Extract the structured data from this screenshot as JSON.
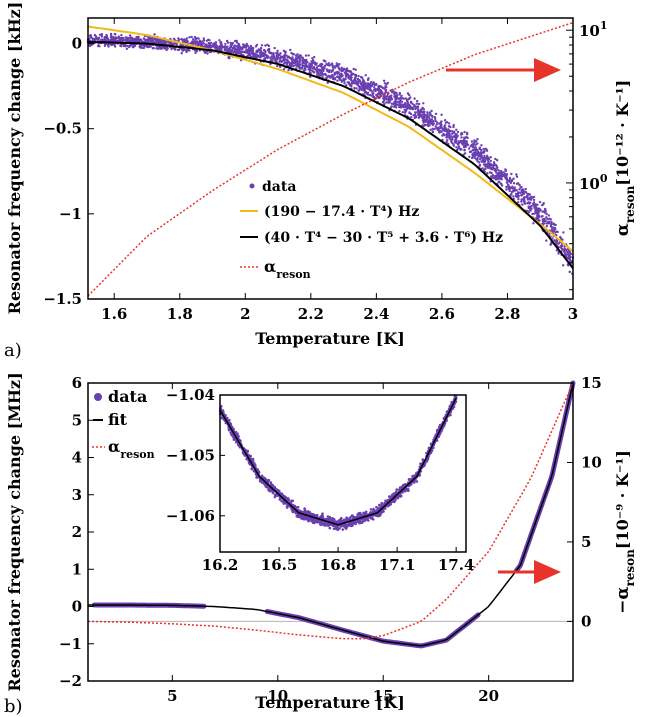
{
  "chart_data": [
    {
      "panel": "a)",
      "type": "scatter",
      "xlabel": "Temperature [K]",
      "ylabel": "Resonator frequency change [kHz]",
      "y2label_main": "α",
      "y2label_sub": "reson",
      "y2label_unit": "[10⁻¹² · K⁻¹]",
      "xlim": [
        1.52,
        3.0
      ],
      "ylim": [
        -1.5,
        0.15
      ],
      "y2lim_log10": [
        -0.76,
        1.08
      ],
      "xticks": [
        "1.6",
        "1.8",
        "2",
        "2.2",
        "2.4",
        "2.6",
        "2.8",
        "3"
      ],
      "yticks": [
        "0",
        "−0.5",
        "−1",
        "−1.5"
      ],
      "y2ticks": [
        "10",
        "10"
      ],
      "y2ticks_exp": [
        "1",
        "0"
      ],
      "legend": [
        {
          "label": "data",
          "color": "#6a3fb0"
        },
        {
          "label": "(190 − 17.4 · T⁴) Hz",
          "color": "#f2b81c"
        },
        {
          "label": "(40 · T⁴ − 30 · T⁵ + 3.6 · T⁶) Hz",
          "color": "#000000"
        },
        {
          "label_main": "α",
          "label_sub": "reson",
          "color": "#e8332a"
        }
      ],
      "series": [
        {
          "type": "scatter-band",
          "x": [
            1.52,
            1.7,
            1.9,
            2.1,
            2.3,
            2.5,
            2.7,
            2.9,
            3.0
          ],
          "y": [
            0.02,
            0.01,
            -0.02,
            -0.08,
            -0.19,
            -0.37,
            -0.63,
            -1.0,
            -1.28
          ]
        },
        {
          "type": "line",
          "x": [
            1.52,
            1.7,
            1.9,
            2.1,
            2.3,
            2.5,
            2.7,
            2.9,
            3.0
          ],
          "y": [
            0.1,
            0.05,
            -0.04,
            -0.15,
            -0.29,
            -0.49,
            -0.76,
            -1.06,
            -1.22
          ]
        },
        {
          "type": "line",
          "x": [
            1.52,
            1.7,
            1.9,
            2.1,
            2.3,
            2.5,
            2.7,
            2.9,
            3.0
          ],
          "y": [
            0.01,
            0.0,
            -0.04,
            -0.12,
            -0.25,
            -0.44,
            -0.71,
            -1.07,
            -1.32
          ]
        },
        {
          "type": "dotted-y2",
          "x": [
            1.52,
            1.7,
            1.9,
            2.1,
            2.3,
            2.5,
            2.7,
            2.9,
            3.0
          ],
          "y_log10": [
            -0.74,
            -0.35,
            -0.05,
            0.22,
            0.45,
            0.66,
            0.84,
            0.98,
            1.05
          ]
        }
      ]
    },
    {
      "panel": "b)",
      "type": "scatter",
      "xlabel": "Temperature [K]",
      "ylabel": "Resonator frequency change [MHz]",
      "y2label_main": "−α",
      "y2label_sub": "reson",
      "y2label_unit": "[10⁻⁹ · K⁻¹]",
      "xlim": [
        1.0,
        24.0
      ],
      "ylim": [
        -2.0,
        6.0
      ],
      "y2lim": [
        -3.75,
        15.0
      ],
      "xticks": [
        "5",
        "10",
        "15",
        "20"
      ],
      "yticks": [
        "6",
        "5",
        "4",
        "3",
        "2",
        "1",
        "0",
        "−1",
        "−2"
      ],
      "y2ticks": [
        "15",
        "10",
        "5",
        "0"
      ],
      "legend": [
        {
          "label": "data",
          "color": "#6a3fb0"
        },
        {
          "label": "fit",
          "color": "#000000"
        },
        {
          "label_main": "α",
          "label_sub": "reson",
          "color": "#e8332a"
        }
      ],
      "series": [
        {
          "type": "line",
          "x": [
            1,
            3,
            5,
            7,
            9,
            11,
            13,
            15,
            16.8,
            18,
            20,
            21.5,
            23,
            24
          ],
          "y": [
            0.04,
            0.04,
            0.03,
            0.0,
            -0.08,
            -0.3,
            -0.62,
            -0.93,
            -1.06,
            -0.9,
            0.0,
            1.1,
            3.5,
            6.0
          ]
        },
        {
          "type": "dotted-y2",
          "x": [
            1,
            3,
            5,
            7,
            9,
            11,
            13,
            14,
            15,
            16.8,
            18,
            20,
            22,
            24
          ],
          "y": [
            0.0,
            -0.05,
            -0.15,
            -0.3,
            -0.55,
            -0.85,
            -1.08,
            -1.1,
            -0.9,
            0.0,
            1.4,
            4.4,
            9.0,
            15.0
          ]
        }
      ],
      "inset": {
        "xlim": [
          16.2,
          17.45
        ],
        "ylim": [
          -1.066,
          -1.04
        ],
        "xticks": [
          "16.2",
          "16.5",
          "16.8",
          "17.1",
          "17.4"
        ],
        "yticks": [
          "−1.04",
          "−1.05",
          "−1.06"
        ],
        "series": [
          {
            "type": "line",
            "x": [
              16.2,
              16.4,
              16.6,
              16.8,
              17.0,
              17.2,
              17.4
            ],
            "y": [
              -1.0425,
              -1.0535,
              -1.0595,
              -1.0615,
              -1.0595,
              -1.0535,
              -1.0405
            ]
          }
        ]
      }
    }
  ]
}
